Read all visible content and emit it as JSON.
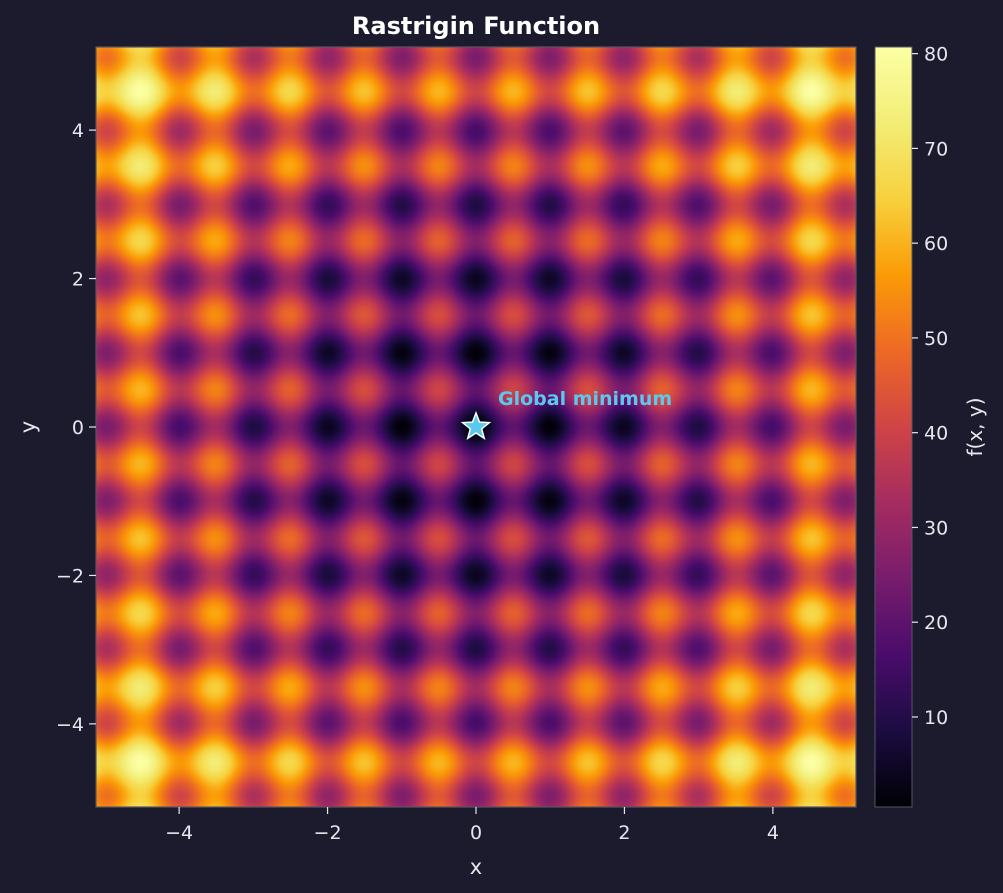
{
  "chart_data": {
    "type": "heatmap",
    "title": "Rastrigin Function",
    "xlabel": "x",
    "ylabel": "y",
    "xlim": [
      -5.12,
      5.12
    ],
    "ylim": [
      -5.12,
      5.12
    ],
    "x_ticks": [
      -4,
      -2,
      0,
      2,
      4
    ],
    "y_ticks": [
      -4,
      -2,
      0,
      2,
      4
    ],
    "x_tick_labels": [
      "−4",
      "−2",
      "0",
      "2",
      "4"
    ],
    "y_tick_labels": [
      "−4",
      "−2",
      "0",
      "2",
      "4"
    ],
    "function": "f(x, y) = 20 + x^2 - 10cos(2πx) + y^2 - 10cos(2πy)",
    "colormap": "inferno",
    "colorbar": {
      "label": "f(x, y)",
      "range": [
        0.5,
        80.7
      ],
      "ticks": [
        10,
        20,
        30,
        40,
        50,
        60,
        70,
        80
      ],
      "tick_labels": [
        "10",
        "20",
        "30",
        "40",
        "50",
        "60",
        "70",
        "80"
      ]
    },
    "annotations": [
      {
        "text": "Global minimum",
        "x": 0,
        "y": 0,
        "marker": "star",
        "color": "#5bc8f0"
      }
    ],
    "grid": false
  },
  "colors": {
    "background": "#1b1b2d",
    "text": "#e6e6ee",
    "title": "#ffffff",
    "annotation": "#5bc8f0",
    "frame": "#555566"
  }
}
